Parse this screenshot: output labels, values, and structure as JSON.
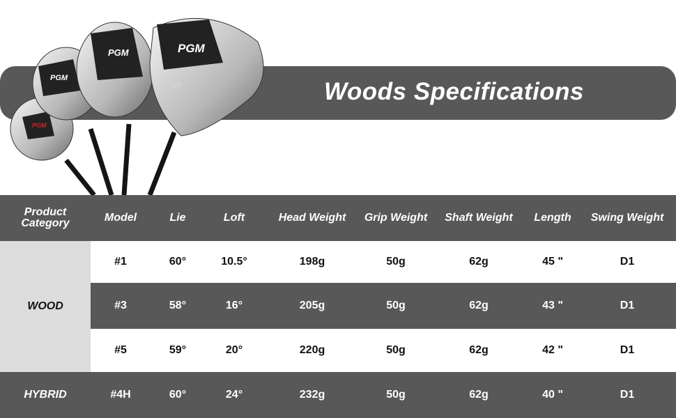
{
  "banner": {
    "title": "Woods Specifications"
  },
  "brand_logo": "PGM",
  "table": {
    "headers": [
      "Product Category",
      "Model",
      "Lie",
      "Loft",
      "Head Weight",
      "Grip Weight",
      "Shaft Weight",
      "Length",
      "Swing Weight"
    ],
    "categories": [
      "WOOD",
      "HYBRID"
    ],
    "rows": [
      [
        "#1",
        "60°",
        "10.5°",
        "198g",
        "50g",
        "62g",
        "45 \"",
        "D1"
      ],
      [
        "#3",
        "58°",
        "16°",
        "205g",
        "50g",
        "62g",
        "43 \"",
        "D1"
      ],
      [
        "#5",
        "59°",
        "20°",
        "220g",
        "50g",
        "62g",
        "42 \"",
        "D1"
      ],
      [
        "#4H",
        "60°",
        "24°",
        "232g",
        "50g",
        "62g",
        "40 \"",
        "D1"
      ]
    ]
  },
  "colors": {
    "dark": "#585858",
    "light": "#dcdcdc",
    "accent": "#d4202a"
  }
}
